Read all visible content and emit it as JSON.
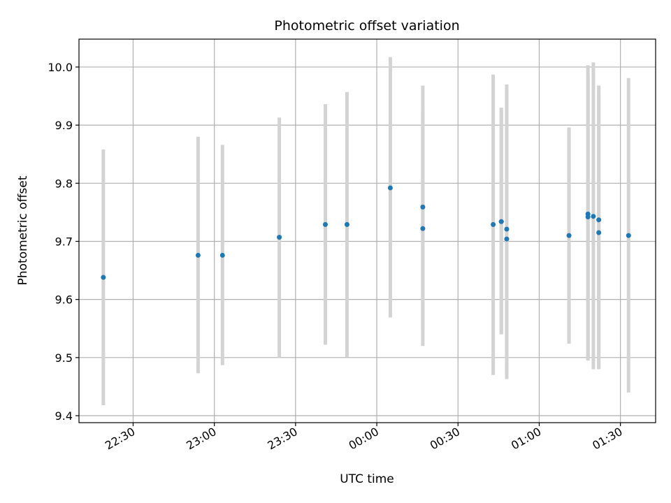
{
  "chart_data": {
    "type": "scatter",
    "title": "Photometric offset variation",
    "xlabel": "UTC time",
    "ylabel": "Photometric offset",
    "x_tick_labels": [
      "22:30",
      "23:00",
      "23:30",
      "00:00",
      "00:30",
      "01:00",
      "01:30"
    ],
    "x_tick_times": [
      "22:30",
      "23:00",
      "23:30",
      "00:00",
      "00:30",
      "01:00",
      "01:30"
    ],
    "y_tick_labels": [
      "9.4",
      "9.5",
      "9.6",
      "9.7",
      "9.8",
      "9.9",
      "10.0"
    ],
    "y_tick_values": [
      9.4,
      9.5,
      9.6,
      9.7,
      9.8,
      9.9,
      10.0
    ],
    "ylim": [
      9.388,
      10.048
    ],
    "xlim": [
      "22:10",
      "01:43"
    ],
    "grid": true,
    "colors": {
      "point": "#1f77b4",
      "errorbar": "#d3d3d3",
      "grid": "#b0b0b0",
      "axis": "#000000"
    },
    "series": [
      {
        "points": [
          {
            "x": "22:19",
            "y": 9.638,
            "ylow": 9.418,
            "yhigh": 9.858
          },
          {
            "x": "22:54",
            "y": 9.676,
            "ylow": 9.473,
            "yhigh": 9.88
          },
          {
            "x": "23:03",
            "y": 9.676,
            "ylow": 9.487,
            "yhigh": 9.866
          },
          {
            "x": "23:24",
            "y": 9.707,
            "ylow": 9.5,
            "yhigh": 9.913
          },
          {
            "x": "23:41",
            "y": 9.729,
            "ylow": 9.522,
            "yhigh": 9.936
          },
          {
            "x": "23:49",
            "y": 9.729,
            "ylow": 9.501,
            "yhigh": 9.957
          },
          {
            "x": "00:05",
            "y": 9.792,
            "ylow": 9.569,
            "yhigh": 10.017
          },
          {
            "x": "00:17",
            "y": 9.722,
            "ylow": 9.52,
            "yhigh": 9.925
          },
          {
            "x": "00:17",
            "y": 9.759,
            "ylow": 9.549,
            "yhigh": 9.968
          },
          {
            "x": "00:43",
            "y": 9.729,
            "ylow": 9.47,
            "yhigh": 9.987
          },
          {
            "x": "00:46",
            "y": 9.734,
            "ylow": 9.541,
            "yhigh": 9.93
          },
          {
            "x": "00:46",
            "y": 9.734,
            "ylow": 9.54,
            "yhigh": 9.928
          },
          {
            "x": "00:48",
            "y": 9.721,
            "ylow": 9.47,
            "yhigh": 9.97
          },
          {
            "x": "00:48",
            "y": 9.704,
            "ylow": 9.463,
            "yhigh": 9.944
          },
          {
            "x": "01:11",
            "y": 9.71,
            "ylow": 9.524,
            "yhigh": 9.896
          },
          {
            "x": "01:18",
            "y": 9.747,
            "ylow": 9.495,
            "yhigh": 10.003
          },
          {
            "x": "01:18",
            "y": 9.742,
            "ylow": 9.497,
            "yhigh": 9.988
          },
          {
            "x": "01:20",
            "y": 9.743,
            "ylow": 9.48,
            "yhigh": 10.008
          },
          {
            "x": "01:22",
            "y": 9.737,
            "ylow": 9.481,
            "yhigh": 9.968
          },
          {
            "x": "01:22",
            "y": 9.715,
            "ylow": 9.48,
            "yhigh": 9.951
          },
          {
            "x": "01:33",
            "y": 9.71,
            "ylow": 9.44,
            "yhigh": 9.981
          }
        ]
      }
    ]
  }
}
